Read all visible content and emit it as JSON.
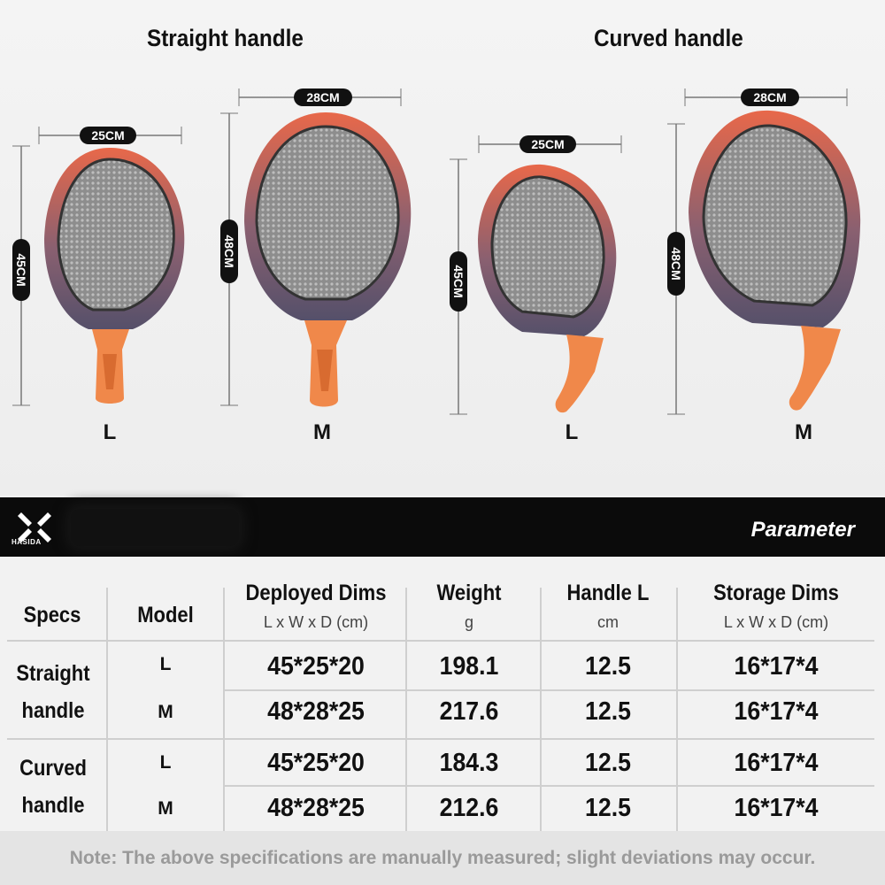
{
  "top": {
    "straight_title": "Straight handle",
    "curved_title": "Curved handle",
    "sizes": [
      "L",
      "M",
      "L",
      "M"
    ],
    "dims": {
      "s_l_w": "25CM",
      "s_l_h": "45CM",
      "s_m_w": "28CM",
      "s_m_h": "48CM",
      "c_l_w": "25CM",
      "c_l_h": "45CM",
      "c_m_w": "28CM",
      "c_m_h": "48CM"
    }
  },
  "header": {
    "brand": "HASIDA",
    "title": "Parameter"
  },
  "table": {
    "col_specs": "Specs",
    "col_model": "Model",
    "col_deployed": "Deployed Dims",
    "col_deployed_unit": "L x W x D (cm)",
    "col_weight": "Weight",
    "col_weight_unit": "g",
    "col_handle": "Handle L",
    "col_handle_unit": "cm",
    "col_storage": "Storage Dims",
    "col_storage_unit": "L x W x D (cm)",
    "groups": [
      {
        "name_line1": "Straight",
        "name_line2": "handle"
      },
      {
        "name_line1": "Curved",
        "name_line2": "handle"
      }
    ],
    "rows": [
      {
        "model": "L",
        "deployed": "45*25*20",
        "weight": "198.1",
        "handle": "12.5",
        "storage": "16*17*4"
      },
      {
        "model": "M",
        "deployed": "48*28*25",
        "weight": "217.6",
        "handle": "12.5",
        "storage": "16*17*4"
      },
      {
        "model": "L",
        "deployed": "45*25*20",
        "weight": "184.3",
        "handle": "12.5",
        "storage": "16*17*4"
      },
      {
        "model": "M",
        "deployed": "48*28*25",
        "weight": "212.6",
        "handle": "12.5",
        "storage": "16*17*4"
      }
    ]
  },
  "note": "Note: The above specifications are manually measured; slight deviations may occur.",
  "colors": {
    "frame_top": "#e8684a",
    "frame_bottom": "#55506a",
    "handle": "#f0884a",
    "header_bg": "#0b0b0b"
  }
}
